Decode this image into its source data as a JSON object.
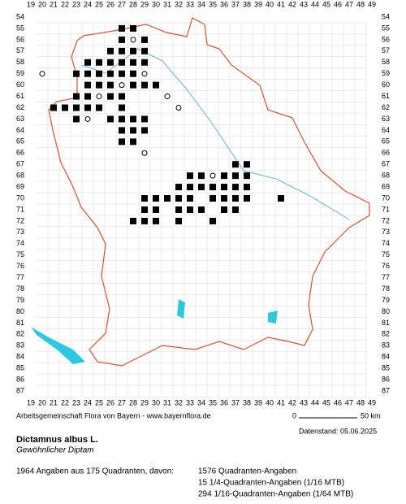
{
  "map": {
    "columns": [
      19,
      20,
      21,
      22,
      23,
      24,
      25,
      26,
      27,
      28,
      29,
      30,
      31,
      32,
      33,
      34,
      35,
      36,
      37,
      38,
      39,
      40,
      41,
      42,
      43,
      44,
      45,
      46,
      47,
      48,
      49
    ],
    "rows": [
      54,
      55,
      56,
      57,
      58,
      59,
      60,
      61,
      62,
      63,
      64,
      65,
      66,
      67,
      68,
      69,
      70,
      71,
      72,
      73,
      74,
      75,
      76,
      77,
      78,
      79,
      80,
      81,
      82,
      83,
      84,
      85,
      86,
      87
    ],
    "records": [
      [
        27,
        55,
        "sq"
      ],
      [
        28,
        55,
        "sq"
      ],
      [
        27,
        56,
        "sq"
      ],
      [
        28,
        56,
        "o"
      ],
      [
        29,
        56,
        "sq"
      ],
      [
        26,
        57,
        "sq"
      ],
      [
        27,
        57,
        "sq"
      ],
      [
        28,
        57,
        "sq"
      ],
      [
        29,
        57,
        "sq"
      ],
      [
        24,
        58,
        "sq"
      ],
      [
        25,
        58,
        "sq"
      ],
      [
        26,
        58,
        "sq"
      ],
      [
        27,
        58,
        "sq"
      ],
      [
        28,
        58,
        "sq"
      ],
      [
        29,
        58,
        "sq"
      ],
      [
        20,
        59,
        "o"
      ],
      [
        23,
        59,
        "sq"
      ],
      [
        24,
        59,
        "sq"
      ],
      [
        25,
        59,
        "sq"
      ],
      [
        26,
        59,
        "sq"
      ],
      [
        27,
        59,
        "sq"
      ],
      [
        28,
        59,
        "sq"
      ],
      [
        29,
        59,
        "o"
      ],
      [
        24,
        60,
        "sq"
      ],
      [
        25,
        60,
        "sq"
      ],
      [
        26,
        60,
        "sq"
      ],
      [
        27,
        60,
        "o"
      ],
      [
        28,
        60,
        "sq"
      ],
      [
        29,
        60,
        "sq"
      ],
      [
        30,
        60,
        "sq"
      ],
      [
        23,
        61,
        "sq"
      ],
      [
        24,
        61,
        "sq"
      ],
      [
        25,
        61,
        "o"
      ],
      [
        26,
        61,
        "sq"
      ],
      [
        27,
        61,
        "sq"
      ],
      [
        31,
        61,
        "o"
      ],
      [
        21,
        62,
        "sq"
      ],
      [
        22,
        62,
        "sq"
      ],
      [
        23,
        62,
        "sq"
      ],
      [
        24,
        62,
        "sq"
      ],
      [
        25,
        62,
        "sq"
      ],
      [
        27,
        62,
        "sq"
      ],
      [
        32,
        62,
        "o"
      ],
      [
        23,
        63,
        "sq"
      ],
      [
        24,
        63,
        "o"
      ],
      [
        26,
        63,
        "sq"
      ],
      [
        27,
        63,
        "sq"
      ],
      [
        28,
        63,
        "sq"
      ],
      [
        29,
        63,
        "sq"
      ],
      [
        27,
        64,
        "sq"
      ],
      [
        28,
        64,
        "sq"
      ],
      [
        29,
        64,
        "sq"
      ],
      [
        27,
        65,
        "sq"
      ],
      [
        28,
        65,
        "sq"
      ],
      [
        29,
        66,
        "o"
      ],
      [
        37,
        67,
        "sq"
      ],
      [
        38,
        67,
        "sq"
      ],
      [
        33,
        68,
        "sq"
      ],
      [
        34,
        68,
        "sq"
      ],
      [
        35,
        68,
        "o"
      ],
      [
        36,
        68,
        "sq"
      ],
      [
        37,
        68,
        "sq"
      ],
      [
        38,
        68,
        "sq"
      ],
      [
        32,
        69,
        "sq"
      ],
      [
        33,
        69,
        "sq"
      ],
      [
        34,
        69,
        "sq"
      ],
      [
        35,
        69,
        "sq"
      ],
      [
        36,
        69,
        "sq"
      ],
      [
        37,
        69,
        "sq"
      ],
      [
        38,
        69,
        "sq"
      ],
      [
        29,
        70,
        "sq"
      ],
      [
        30,
        70,
        "sq"
      ],
      [
        31,
        70,
        "sq"
      ],
      [
        32,
        70,
        "sq"
      ],
      [
        33,
        70,
        "sq"
      ],
      [
        35,
        70,
        "sq"
      ],
      [
        36,
        70,
        "sq"
      ],
      [
        37,
        70,
        "sq"
      ],
      [
        38,
        70,
        "sq"
      ],
      [
        41,
        70,
        "sq"
      ],
      [
        29,
        71,
        "sq"
      ],
      [
        30,
        71,
        "sq"
      ],
      [
        32,
        71,
        "sq"
      ],
      [
        33,
        71,
        "sq"
      ],
      [
        34,
        71,
        "sq"
      ],
      [
        36,
        71,
        "sq"
      ],
      [
        37,
        71,
        "sq"
      ],
      [
        28,
        72,
        "sq"
      ],
      [
        29,
        72,
        "sq"
      ],
      [
        30,
        72,
        "sq"
      ],
      [
        32,
        72,
        "sq"
      ],
      [
        35,
        72,
        "sq"
      ]
    ],
    "credit": "Arbeitsgemeinschaft Flora von Bayern - www.bayernflora.de",
    "scale_start": "0",
    "scale_end": "50 km",
    "date": "Datenstand: 05.06.2025",
    "species": "Dictamnus albus L.",
    "common_name": "Gewöhnlicher Diptam",
    "summary": "1964 Angaben aus 175 Quadranten, davon:",
    "breakdown": [
      "1576 Quadranten-Angaben",
      "15 1/4-Quadranten-Angaben (1/16 MTB)",
      "294 1/16-Quadranten-Angaben (1/64 MTB)"
    ]
  }
}
